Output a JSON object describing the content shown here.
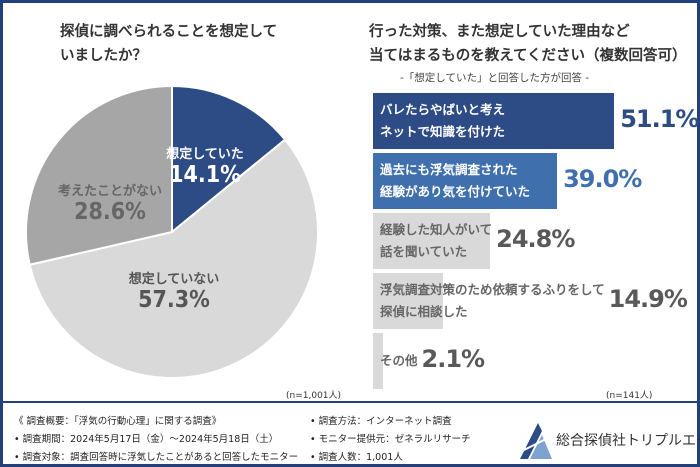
{
  "chart_data": [
    {
      "type": "pie",
      "title": [
        "探偵に調べられることを想定して",
        "いましたか？"
      ],
      "slices": [
        {
          "label": "想定していた",
          "value": 14.1,
          "display": "14.1%",
          "color": "#2d4b84",
          "text_color": "#ffffff"
        },
        {
          "label": "想定していない",
          "value": 57.3,
          "display": "57.3%",
          "color": "#d9d9d9",
          "text_color": "#555555"
        },
        {
          "label": "考えたことがない",
          "value": 28.6,
          "display": "28.6%",
          "color": "#a6a6a6",
          "text_color": "#666666"
        }
      ],
      "note": "(n=1,001人)"
    },
    {
      "type": "bar",
      "orientation": "horizontal",
      "title": [
        "行った対策、また想定していた理由など",
        "当てはまるものを教えてください（複数回答可）"
      ],
      "subtitle": "-「想定していた」と回答した方が回答 -",
      "bars": [
        {
          "label": [
            "バレたらやばいと考え",
            "ネットで知識を付けた"
          ],
          "value": 51.1,
          "display": "51.1%",
          "color": "#2d4b84",
          "label_color": "#ffffff",
          "value_color": "#2d4b84"
        },
        {
          "label": [
            "過去にも浮気調査された",
            "経験があり気を付けていた"
          ],
          "value": 39.0,
          "display": "39.0%",
          "color": "#3f70ad",
          "label_color": "#ffffff",
          "value_color": "#3f70ad"
        },
        {
          "label": [
            "経験した知人がいて",
            "話を聞いていた"
          ],
          "value": 24.8,
          "display": "24.8%",
          "color": "#d9d9d9",
          "label_color": "#666666",
          "value_color": "#595959"
        },
        {
          "label": [
            "浮気調査対策のため依頼するふりをして",
            "探偵に相談した"
          ],
          "value": 14.9,
          "display": "14.9%",
          "color": "#d9d9d9",
          "label_color": "#666666",
          "value_color": "#595959"
        },
        {
          "label": [
            "その他"
          ],
          "value": 2.1,
          "display": "2.1%",
          "color": "#d9d9d9",
          "label_color": "#666666",
          "value_color": "#595959"
        }
      ],
      "note": "(n=141人)"
    }
  ],
  "footer": {
    "left": [
      "《 調査概要：「浮気の行動心理」に関する調査》",
      "• 調査期間：2024年5月17日（金）～2024年5月18日（土）",
      "• 調査対象：調査回答時に浮気したことがあると回答したモニター"
    ],
    "mid": [
      "• 調査方法：インターネット調査",
      "• モニター提供元：ゼネラルリサーチ",
      "• 調査人数：1,001人"
    ],
    "logo": "総合探偵社トリプルエー"
  }
}
